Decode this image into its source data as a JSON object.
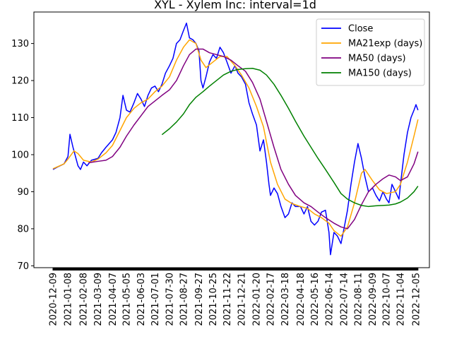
{
  "chart_data": {
    "type": "line",
    "title": "XYL - Xylem Inc: interval=1d",
    "xlabel": "",
    "ylabel": "",
    "x_tick_labels": [
      "2020-12-09",
      "2021-01-08",
      "2021-02-08",
      "2021-03-09",
      "2021-04-07",
      "2021-05-05",
      "2021-06-03",
      "2021-07-01",
      "2021-07-30",
      "2021-08-27",
      "2021-09-27",
      "2021-10-25",
      "2021-11-22",
      "2021-12-21",
      "2022-01-20",
      "2022-02-17",
      "2022-03-18",
      "2022-04-18",
      "2022-05-16",
      "2022-06-14",
      "2022-07-14",
      "2022-08-11",
      "2022-09-09",
      "2022-10-07",
      "2022-11-04",
      "2022-12-05"
    ],
    "y_ticks": [
      70,
      80,
      90,
      100,
      110,
      120,
      130
    ],
    "ylim": [
      69.5,
      138.5
    ],
    "grid": false,
    "legend_position": "top-right",
    "series": [
      {
        "name": "Close",
        "color": "#0000ff",
        "points": [
          [
            "2020-12-09",
            96.0
          ],
          [
            "2020-12-20",
            96.8
          ],
          [
            "2020-12-31",
            97.5
          ],
          [
            "2021-01-08",
            99.5
          ],
          [
            "2021-01-12",
            105.5
          ],
          [
            "2021-01-18",
            102.0
          ],
          [
            "2021-01-28",
            97.0
          ],
          [
            "2021-02-02",
            96.0
          ],
          [
            "2021-02-08",
            98.0
          ],
          [
            "2021-02-15",
            97.0
          ],
          [
            "2021-02-24",
            98.5
          ],
          [
            "2021-03-09",
            99.0
          ],
          [
            "2021-03-16",
            100.5
          ],
          [
            "2021-03-25",
            102.0
          ],
          [
            "2021-04-07",
            104.0
          ],
          [
            "2021-04-14",
            106.0
          ],
          [
            "2021-04-22",
            110.0
          ],
          [
            "2021-04-28",
            116.0
          ],
          [
            "2021-05-05",
            112.0
          ],
          [
            "2021-05-12",
            111.5
          ],
          [
            "2021-05-20",
            114.0
          ],
          [
            "2021-05-27",
            116.5
          ],
          [
            "2021-06-03",
            115.0
          ],
          [
            "2021-06-10",
            113.0
          ],
          [
            "2021-06-17",
            116.0
          ],
          [
            "2021-06-24",
            118.0
          ],
          [
            "2021-07-01",
            118.5
          ],
          [
            "2021-07-08",
            117.0
          ],
          [
            "2021-07-15",
            119.0
          ],
          [
            "2021-07-22",
            122.0
          ],
          [
            "2021-07-30",
            124.0
          ],
          [
            "2021-08-06",
            126.0
          ],
          [
            "2021-08-13",
            130.0
          ],
          [
            "2021-08-20",
            131.0
          ],
          [
            "2021-08-27",
            133.5
          ],
          [
            "2021-09-02",
            135.5
          ],
          [
            "2021-09-08",
            131.5
          ],
          [
            "2021-09-15",
            131.0
          ],
          [
            "2021-09-21",
            130.0
          ],
          [
            "2021-09-27",
            128.0
          ],
          [
            "2021-10-01",
            120.0
          ],
          [
            "2021-10-05",
            118.0
          ],
          [
            "2021-10-11",
            121.0
          ],
          [
            "2021-10-18",
            125.0
          ],
          [
            "2021-10-25",
            127.0
          ],
          [
            "2021-11-01",
            126.0
          ],
          [
            "2021-11-08",
            129.0
          ],
          [
            "2021-11-15",
            127.5
          ],
          [
            "2021-11-22",
            125.0
          ],
          [
            "2021-11-30",
            122.0
          ],
          [
            "2021-12-08",
            124.0
          ],
          [
            "2021-12-14",
            122.0
          ],
          [
            "2021-12-21",
            121.0
          ],
          [
            "2021-12-29",
            119.0
          ],
          [
            "2022-01-05",
            114.0
          ],
          [
            "2022-01-12",
            111.0
          ],
          [
            "2022-01-20",
            108.0
          ],
          [
            "2022-01-27",
            101.0
          ],
          [
            "2022-02-03",
            104.0
          ],
          [
            "2022-02-09",
            98.0
          ],
          [
            "2022-02-14",
            92.0
          ],
          [
            "2022-02-17",
            89.0
          ],
          [
            "2022-02-24",
            91.0
          ],
          [
            "2022-03-03",
            89.5
          ],
          [
            "2022-03-10",
            86.0
          ],
          [
            "2022-03-18",
            83.0
          ],
          [
            "2022-03-25",
            84.0
          ],
          [
            "2022-04-01",
            87.0
          ],
          [
            "2022-04-08",
            86.0
          ],
          [
            "2022-04-18",
            86.0
          ],
          [
            "2022-04-25",
            84.0
          ],
          [
            "2022-05-02",
            86.0
          ],
          [
            "2022-05-09",
            82.0
          ],
          [
            "2022-05-16",
            81.0
          ],
          [
            "2022-05-23",
            82.0
          ],
          [
            "2022-05-30",
            84.5
          ],
          [
            "2022-06-07",
            85.0
          ],
          [
            "2022-06-14",
            79.0
          ],
          [
            "2022-06-17",
            73.0
          ],
          [
            "2022-06-24",
            79.0
          ],
          [
            "2022-07-01",
            78.0
          ],
          [
            "2022-07-08",
            76.0
          ],
          [
            "2022-07-14",
            80.0
          ],
          [
            "2022-07-21",
            85.0
          ],
          [
            "2022-07-28",
            92.0
          ],
          [
            "2022-08-04",
            98.0
          ],
          [
            "2022-08-11",
            103.0
          ],
          [
            "2022-08-18",
            99.0
          ],
          [
            "2022-08-25",
            94.0
          ],
          [
            "2022-09-01",
            90.0
          ],
          [
            "2022-09-09",
            91.0
          ],
          [
            "2022-09-16",
            89.0
          ],
          [
            "2022-09-23",
            87.5
          ],
          [
            "2022-09-30",
            90.0
          ],
          [
            "2022-10-07",
            88.0
          ],
          [
            "2022-10-12",
            87.0
          ],
          [
            "2022-10-18",
            92.0
          ],
          [
            "2022-10-25",
            90.0
          ],
          [
            "2022-11-01",
            88.0
          ],
          [
            "2022-11-04",
            92.0
          ],
          [
            "2022-11-11",
            100.0
          ],
          [
            "2022-11-18",
            106.0
          ],
          [
            "2022-11-25",
            110.0
          ],
          [
            "2022-12-01",
            112.0
          ],
          [
            "2022-12-05",
            113.5
          ],
          [
            "2022-12-09",
            112.0
          ]
        ]
      },
      {
        "name": "MA21exp (days)",
        "color": "#ffa500",
        "points": [
          [
            "2020-12-09",
            96.2
          ],
          [
            "2020-12-31",
            97.5
          ],
          [
            "2021-01-08",
            98.8
          ],
          [
            "2021-01-20",
            101.0
          ],
          [
            "2021-01-28",
            100.3
          ],
          [
            "2021-02-08",
            98.5
          ],
          [
            "2021-02-24",
            98.0
          ],
          [
            "2021-03-09",
            98.8
          ],
          [
            "2021-03-25",
            100.5
          ],
          [
            "2021-04-07",
            102.5
          ],
          [
            "2021-04-22",
            106.5
          ],
          [
            "2021-05-05",
            110.0
          ],
          [
            "2021-05-20",
            112.5
          ],
          [
            "2021-06-03",
            114.0
          ],
          [
            "2021-06-17",
            115.0
          ],
          [
            "2021-07-01",
            117.0
          ],
          [
            "2021-07-15",
            118.5
          ],
          [
            "2021-07-30",
            121.0
          ],
          [
            "2021-08-13",
            125.5
          ],
          [
            "2021-08-27",
            129.0
          ],
          [
            "2021-09-08",
            131.0
          ],
          [
            "2021-09-21",
            130.0
          ],
          [
            "2021-10-01",
            125.5
          ],
          [
            "2021-10-11",
            123.5
          ],
          [
            "2021-10-25",
            125.0
          ],
          [
            "2021-11-08",
            126.5
          ],
          [
            "2021-11-22",
            126.5
          ],
          [
            "2021-12-08",
            124.0
          ],
          [
            "2021-12-21",
            121.5
          ],
          [
            "2022-01-05",
            118.0
          ],
          [
            "2022-01-20",
            113.0
          ],
          [
            "2022-02-03",
            107.5
          ],
          [
            "2022-02-17",
            98.0
          ],
          [
            "2022-03-03",
            92.0
          ],
          [
            "2022-03-18",
            88.0
          ],
          [
            "2022-04-01",
            86.8
          ],
          [
            "2022-04-18",
            86.0
          ],
          [
            "2022-05-02",
            85.5
          ],
          [
            "2022-05-16",
            84.0
          ],
          [
            "2022-05-30",
            83.0
          ],
          [
            "2022-06-14",
            81.5
          ],
          [
            "2022-06-24",
            79.5
          ],
          [
            "2022-07-08",
            78.0
          ],
          [
            "2022-07-21",
            80.5
          ],
          [
            "2022-08-04",
            87.0
          ],
          [
            "2022-08-18",
            95.0
          ],
          [
            "2022-08-25",
            96.0
          ],
          [
            "2022-09-09",
            93.0
          ],
          [
            "2022-09-23",
            90.5
          ],
          [
            "2022-10-07",
            89.5
          ],
          [
            "2022-10-25",
            90.0
          ],
          [
            "2022-11-04",
            92.0
          ],
          [
            "2022-11-18",
            98.0
          ],
          [
            "2022-12-01",
            105.0
          ],
          [
            "2022-12-09",
            109.5
          ]
        ]
      },
      {
        "name": "MA50 (days)",
        "color": "#800080",
        "points": [
          [
            "2021-02-18",
            97.8
          ],
          [
            "2021-03-09",
            98.2
          ],
          [
            "2021-03-25",
            98.5
          ],
          [
            "2021-04-07",
            99.5
          ],
          [
            "2021-04-22",
            102.0
          ],
          [
            "2021-05-05",
            105.0
          ],
          [
            "2021-05-20",
            108.0
          ],
          [
            "2021-06-03",
            110.5
          ],
          [
            "2021-06-17",
            113.0
          ],
          [
            "2021-07-01",
            114.5
          ],
          [
            "2021-07-15",
            116.0
          ],
          [
            "2021-07-30",
            117.5
          ],
          [
            "2021-08-13",
            120.0
          ],
          [
            "2021-08-27",
            124.0
          ],
          [
            "2021-09-08",
            127.0
          ],
          [
            "2021-09-21",
            128.5
          ],
          [
            "2021-10-05",
            128.5
          ],
          [
            "2021-10-18",
            127.5
          ],
          [
            "2021-11-01",
            127.0
          ],
          [
            "2021-11-15",
            126.5
          ],
          [
            "2021-11-30",
            125.5
          ],
          [
            "2021-12-14",
            124.0
          ],
          [
            "2021-12-29",
            122.5
          ],
          [
            "2022-01-12",
            119.5
          ],
          [
            "2022-01-27",
            115.0
          ],
          [
            "2022-02-09",
            109.0
          ],
          [
            "2022-02-24",
            102.0
          ],
          [
            "2022-03-10",
            96.0
          ],
          [
            "2022-03-25",
            92.0
          ],
          [
            "2022-04-08",
            89.0
          ],
          [
            "2022-04-25",
            87.0
          ],
          [
            "2022-05-09",
            86.0
          ],
          [
            "2022-05-23",
            84.5
          ],
          [
            "2022-06-07",
            83.0
          ],
          [
            "2022-06-24",
            81.5
          ],
          [
            "2022-07-08",
            80.5
          ],
          [
            "2022-07-21",
            80.0
          ],
          [
            "2022-08-04",
            82.5
          ],
          [
            "2022-08-18",
            86.5
          ],
          [
            "2022-09-01",
            90.0
          ],
          [
            "2022-09-16",
            92.0
          ],
          [
            "2022-09-30",
            93.5
          ],
          [
            "2022-10-12",
            94.5
          ],
          [
            "2022-10-25",
            94.0
          ],
          [
            "2022-11-04",
            93.0
          ],
          [
            "2022-11-18",
            94.0
          ],
          [
            "2022-12-01",
            97.5
          ],
          [
            "2022-12-09",
            100.8
          ]
        ]
      },
      {
        "name": "MA150 (days)",
        "color": "#008000",
        "points": [
          [
            "2021-07-15",
            105.4
          ],
          [
            "2021-07-30",
            107.0
          ],
          [
            "2021-08-13",
            108.8
          ],
          [
            "2021-08-27",
            111.0
          ],
          [
            "2021-09-08",
            113.5
          ],
          [
            "2021-09-21",
            115.5
          ],
          [
            "2021-10-05",
            117.0
          ],
          [
            "2021-10-18",
            118.5
          ],
          [
            "2021-11-01",
            120.0
          ],
          [
            "2021-11-15",
            121.5
          ],
          [
            "2021-11-30",
            122.5
          ],
          [
            "2021-12-14",
            123.0
          ],
          [
            "2021-12-29",
            123.2
          ],
          [
            "2022-01-12",
            123.3
          ],
          [
            "2022-01-27",
            122.8
          ],
          [
            "2022-02-09",
            121.5
          ],
          [
            "2022-02-24",
            119.0
          ],
          [
            "2022-03-10",
            116.0
          ],
          [
            "2022-03-25",
            112.5
          ],
          [
            "2022-04-08",
            109.0
          ],
          [
            "2022-04-25",
            105.0
          ],
          [
            "2022-05-09",
            102.0
          ],
          [
            "2022-05-23",
            99.0
          ],
          [
            "2022-06-07",
            96.0
          ],
          [
            "2022-06-24",
            92.5
          ],
          [
            "2022-07-08",
            89.5
          ],
          [
            "2022-07-21",
            88.0
          ],
          [
            "2022-08-04",
            87.0
          ],
          [
            "2022-08-18",
            86.3
          ],
          [
            "2022-09-01",
            86.0
          ],
          [
            "2022-09-16",
            86.2
          ],
          [
            "2022-09-30",
            86.3
          ],
          [
            "2022-10-12",
            86.4
          ],
          [
            "2022-10-25",
            86.7
          ],
          [
            "2022-11-04",
            87.2
          ],
          [
            "2022-11-18",
            88.3
          ],
          [
            "2022-12-01",
            90.0
          ],
          [
            "2022-12-09",
            91.5
          ]
        ]
      }
    ]
  }
}
